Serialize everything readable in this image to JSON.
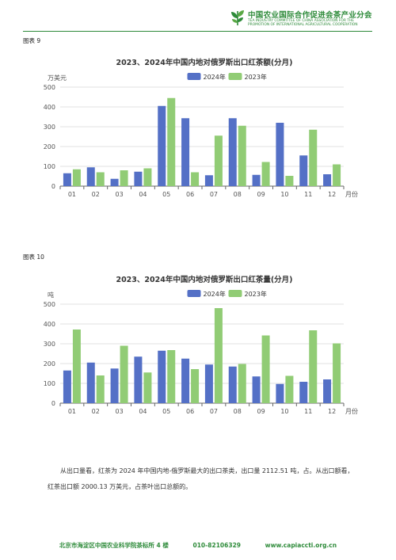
{
  "header": {
    "org_cn": "中国农业国际合作促进会茶产业分会",
    "org_en": "TEA INDUSTRY COMMITTEE OF CHINA ASSOCIATION FOR THE\nPROMOTION OF INTERNATIONAL AGRICULTURAL COOPERATION"
  },
  "figures": [
    {
      "label": "图表 9"
    },
    {
      "label": "图表 10"
    }
  ],
  "chart_data": [
    {
      "type": "bar",
      "title": "2023、2024年中国内地对俄罗斯出口红茶额(分月)",
      "ylabel": "万美元",
      "xlabel": "月份",
      "categories": [
        "01",
        "02",
        "03",
        "04",
        "05",
        "06",
        "07",
        "08",
        "09",
        "10",
        "11",
        "12"
      ],
      "ylim": [
        0,
        500
      ],
      "yticks": [
        0,
        100,
        200,
        300,
        400,
        500
      ],
      "legend_position": "top",
      "grid": true,
      "series": [
        {
          "name": "2024年",
          "color": "#5470c6",
          "values": [
            65,
            95,
            37,
            73,
            405,
            343,
            55,
            343,
            57,
            320,
            155,
            60
          ]
        },
        {
          "name": "2023年",
          "color": "#91cc75",
          "values": [
            85,
            70,
            80,
            90,
            445,
            70,
            255,
            305,
            122,
            52,
            285,
            110
          ]
        }
      ]
    },
    {
      "type": "bar",
      "title": "2023、2024年中国内地对俄罗斯出口红茶量(分月)",
      "ylabel": "吨",
      "xlabel": "月份",
      "categories": [
        "01",
        "02",
        "03",
        "04",
        "05",
        "06",
        "07",
        "08",
        "09",
        "10",
        "11",
        "12"
      ],
      "ylim": [
        0,
        500
      ],
      "yticks": [
        0,
        100,
        200,
        300,
        400,
        500
      ],
      "legend_position": "top",
      "grid": true,
      "series": [
        {
          "name": "2024年",
          "color": "#5470c6",
          "values": [
            165,
            205,
            175,
            235,
            265,
            225,
            195,
            185,
            135,
            97,
            108,
            120
          ]
        },
        {
          "name": "2023年",
          "color": "#91cc75",
          "values": [
            372,
            140,
            290,
            155,
            268,
            172,
            480,
            198,
            342,
            138,
            368,
            302
          ]
        }
      ]
    }
  ],
  "paragraph": {
    "line1": "从出口量看，红茶为 2024 年中国内地-俄罗斯最大的出口茶类，出口量 2112.51 吨，占。从出口额看，",
    "line2": "红茶出口额 2000.13 万美元，占茶叶出口总额的。"
  },
  "footer": {
    "address": "北京市海淀区中国农业科学院茶标所 4 楼",
    "phone": "010-82106329",
    "website": "www.capiaccti.org.cn"
  }
}
